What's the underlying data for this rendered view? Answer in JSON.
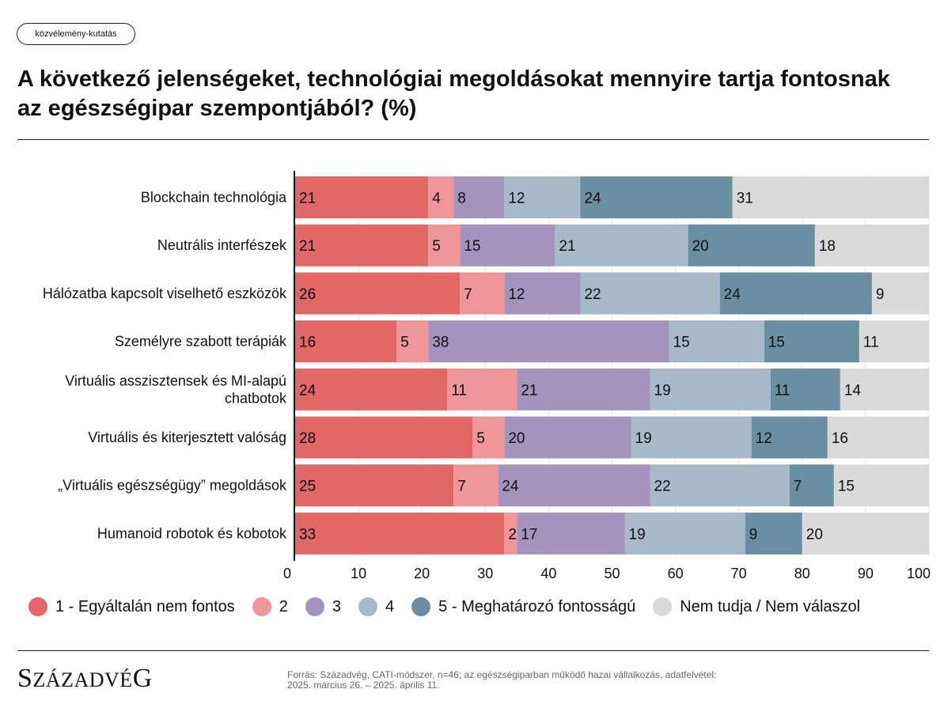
{
  "tag": "közvélemény-kutatás",
  "title": "A következő jelenségeket, technológiai megoldásokat mennyire tartja fontosnak az egészségipar szempontjából? (%)",
  "logo": {
    "first": "S",
    "rest": "ZÁZADVÉ",
    "last": "G"
  },
  "source": {
    "line1": "Forrás: Századvég, CATI-módszer, n=46; az egészségiparban működő hazai vállalkozás, adatfelvétel:",
    "line2": "2025. március 26. – 2025. április 11."
  },
  "chart_data": {
    "type": "bar",
    "orientation": "horizontal",
    "stacked": true,
    "categories": [
      [
        "Blockchain technológia"
      ],
      [
        "Neutrális interfészek"
      ],
      [
        "Hálózatba kapcsolt viselhető eszközök"
      ],
      [
        "Személyre szabott terápiák"
      ],
      [
        "Virtuális asszisztensek és MI-alapú",
        "chatbotok"
      ],
      [
        "Virtuális és kiterjesztett valóság"
      ],
      [
        "„Virtuális egészségügy” megoldások"
      ],
      [
        "Humanoid robotok és kobotok"
      ]
    ],
    "series": [
      {
        "name": "1 - Egyáltalán nem fontos",
        "color": "#e26767",
        "values": [
          21,
          21,
          26,
          16,
          24,
          28,
          25,
          33
        ]
      },
      {
        "name": "2",
        "color": "#ef9699",
        "values": [
          4,
          5,
          7,
          5,
          11,
          5,
          7,
          2
        ]
      },
      {
        "name": "3",
        "color": "#a394bd",
        "values": [
          8,
          15,
          12,
          38,
          21,
          20,
          24,
          17
        ]
      },
      {
        "name": "4",
        "color": "#a8b9c9",
        "values": [
          12,
          21,
          22,
          15,
          19,
          19,
          22,
          19
        ]
      },
      {
        "name": "5 - Meghatározó fontosságú",
        "color": "#6a8fa3",
        "values": [
          24,
          20,
          24,
          15,
          11,
          12,
          7,
          9
        ]
      },
      {
        "name": "Nem tudja / Nem válaszol",
        "color": "#d9d9d9",
        "values": [
          31,
          18,
          9,
          11,
          14,
          16,
          15,
          20
        ]
      }
    ],
    "xlim": [
      0,
      100
    ],
    "xticks": [
      "0",
      "10",
      "20",
      "30",
      "40",
      "50",
      "60",
      "70",
      "80",
      "90",
      "100"
    ],
    "grid": true,
    "legend": "bottom"
  }
}
